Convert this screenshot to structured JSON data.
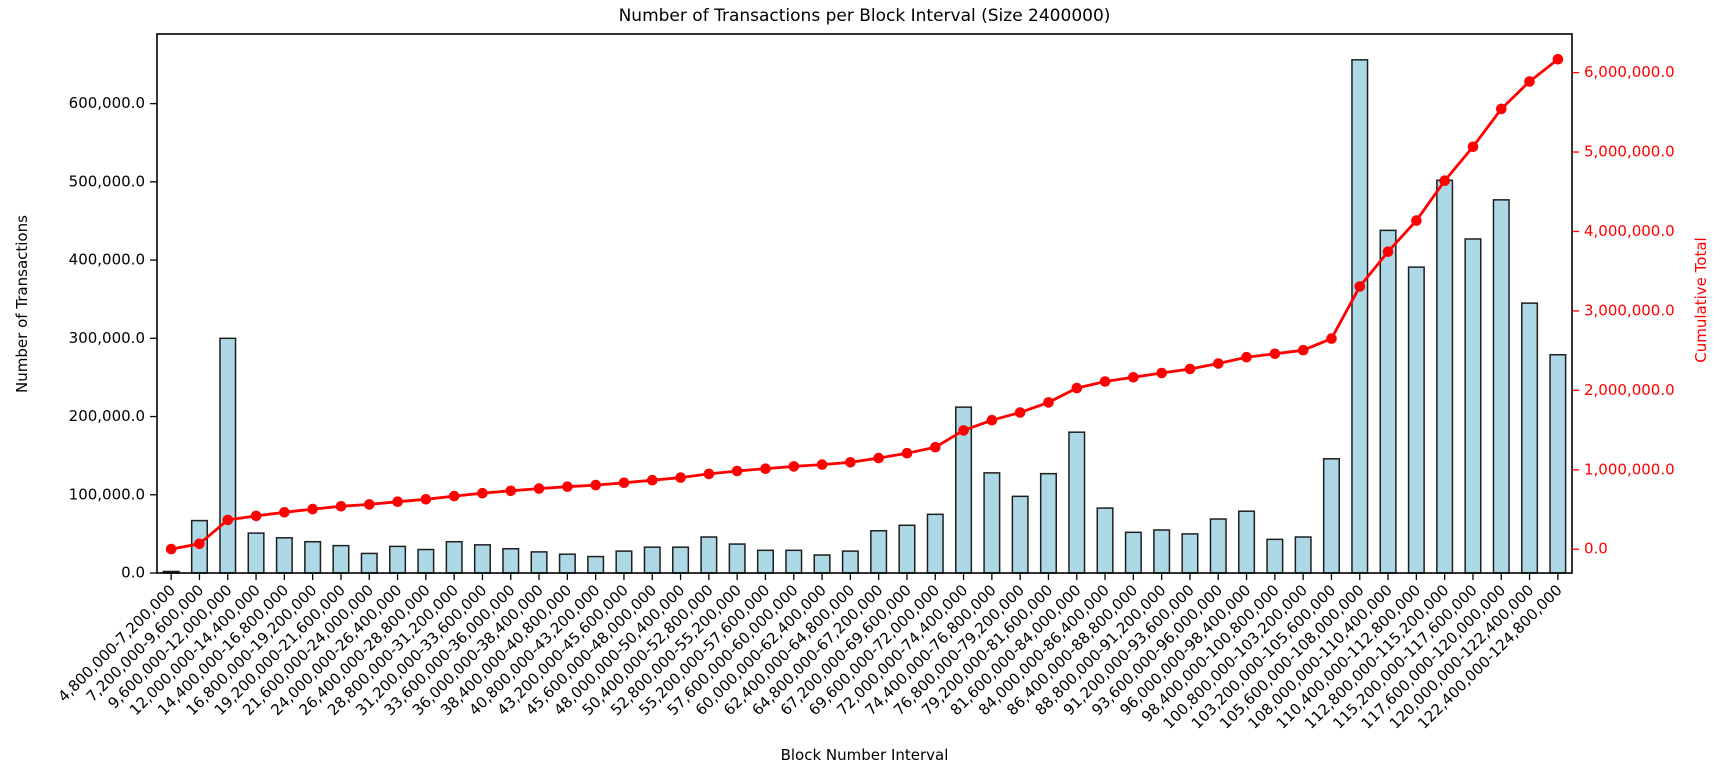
{
  "chart_data": {
    "type": "bar+line",
    "title": "Number of Transactions per Block Interval (Size 2400000)",
    "xlabel": "Block Number Interval",
    "ylabel_left": "Number of Transactions",
    "ylabel_right": "Cumulative Total",
    "legend": "none",
    "grid": false,
    "categories": [
      "4,800,000-7,200,000",
      "7,200,000-9,600,000",
      "9,600,000-12,000,000",
      "12,000,000-14,400,000",
      "14,400,000-16,800,000",
      "16,800,000-19,200,000",
      "19,200,000-21,600,000",
      "21,600,000-24,000,000",
      "24,000,000-26,400,000",
      "26,400,000-28,800,000",
      "28,800,000-31,200,000",
      "31,200,000-33,600,000",
      "33,600,000-36,000,000",
      "36,000,000-38,400,000",
      "38,400,000-40,800,000",
      "40,800,000-43,200,000",
      "43,200,000-45,600,000",
      "45,600,000-48,000,000",
      "48,000,000-50,400,000",
      "50,400,000-52,800,000",
      "52,800,000-55,200,000",
      "55,200,000-57,600,000",
      "57,600,000-60,000,000",
      "60,000,000-62,400,000",
      "62,400,000-64,800,000",
      "64,800,000-67,200,000",
      "67,200,000-69,600,000",
      "69,600,000-72,000,000",
      "72,000,000-74,400,000",
      "74,400,000-76,800,000",
      "76,800,000-79,200,000",
      "79,200,000-81,600,000",
      "81,600,000-84,000,000",
      "84,000,000-86,400,000",
      "86,400,000-88,800,000",
      "88,800,000-91,200,000",
      "91,200,000-93,600,000",
      "93,600,000-96,000,000",
      "96,000,000-98,400,000",
      "98,400,000-100,800,000",
      "100,800,000-103,200,000",
      "103,200,000-105,600,000",
      "105,600,000-108,000,000",
      "108,000,000-110,400,000",
      "110,400,000-112,800,000",
      "112,800,000-115,200,000",
      "115,200,000-117,600,000",
      "117,600,000-120,000,000",
      "120,000,000-122,400,000",
      "122,400,000-124,800,000"
    ],
    "series": [
      {
        "name": "Number of Transactions",
        "type": "bar",
        "axis": "left",
        "values": [
          2000,
          67000,
          300000,
          51000,
          45000,
          40000,
          35000,
          25000,
          34000,
          30000,
          40000,
          36000,
          31000,
          27000,
          24000,
          21000,
          28000,
          33000,
          33000,
          46000,
          37000,
          29000,
          29000,
          23000,
          28000,
          54000,
          61000,
          75000,
          212000,
          128000,
          98000,
          127000,
          180000,
          83000,
          52000,
          55000,
          50000,
          69000,
          79000,
          43000,
          46000,
          146000,
          656000,
          438000,
          391000,
          502000,
          427000,
          477000,
          345000,
          279000
        ]
      },
      {
        "name": "Cumulative Total",
        "type": "line",
        "axis": "right",
        "values": [
          2000,
          69000,
          369000,
          420000,
          465000,
          505000,
          540000,
          565000,
          599000,
          629000,
          669000,
          705000,
          736000,
          763000,
          787000,
          808000,
          836000,
          869000,
          902000,
          948000,
          985000,
          1014000,
          1043000,
          1066000,
          1094000,
          1148000,
          1209000,
          1284000,
          1496000,
          1624000,
          1722000,
          1849000,
          2029000,
          2112000,
          2164000,
          2219000,
          2269000,
          2338000,
          2417000,
          2460000,
          2506000,
          2652000,
          3308000,
          3746000,
          4137000,
          4639000,
          5066000,
          5543000,
          5888000,
          6167000
        ]
      }
    ],
    "y_left_ticks": [
      0,
      100000,
      200000,
      300000,
      400000,
      500000,
      600000
    ],
    "y_left_tick_labels": [
      "0.0",
      "100,000.0",
      "200,000.0",
      "300,000.0",
      "400,000.0",
      "500,000.0",
      "600,000.0"
    ],
    "ylim_left": [
      0,
      689000
    ],
    "y_right_ticks": [
      0,
      1000000,
      2000000,
      3000000,
      4000000,
      5000000,
      6000000
    ],
    "y_right_tick_labels": [
      "0.0",
      "1,000,000.0",
      "2,000,000.0",
      "3,000,000.0",
      "4,000,000.0",
      "5,000,000.0",
      "6,000,000.0"
    ],
    "ylim_right": [
      -299000,
      6486000
    ],
    "colors": {
      "bar_fill": "#ADD8E6",
      "bar_edge": "#1f1f1f",
      "line": "#ff0000",
      "right_axis_text": "#ff0000",
      "left_axis_text": "#000000",
      "spine": "#000000"
    }
  }
}
